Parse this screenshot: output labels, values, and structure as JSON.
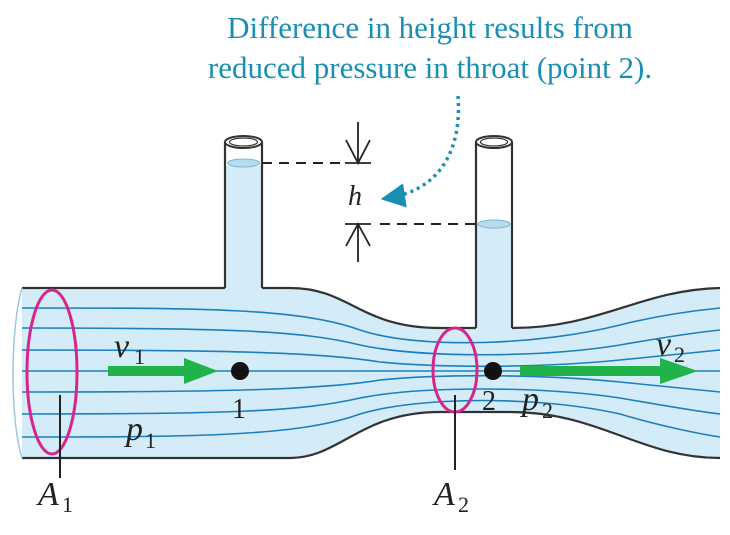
{
  "caption": {
    "line1": "Difference in height results from",
    "line2": "reduced pressure in throat (point 2)."
  },
  "labels": {
    "h": "h",
    "v1": "v",
    "v1_sub": "1",
    "v2": "v",
    "v2_sub": "2",
    "p1": "p",
    "p1_sub": "1",
    "p2": "p",
    "p2_sub": "2",
    "point1": "1",
    "point2": "2",
    "A1": "A",
    "A1_sub": "1",
    "A2": "A",
    "A2_sub": "2"
  },
  "colors": {
    "fluid": "#d4ecf8",
    "outline": "#333333",
    "streamline": "#1c7fbf",
    "caption": "#1a8fb5",
    "ellipse": "#d6258c",
    "arrow": "#1fb34a"
  }
}
